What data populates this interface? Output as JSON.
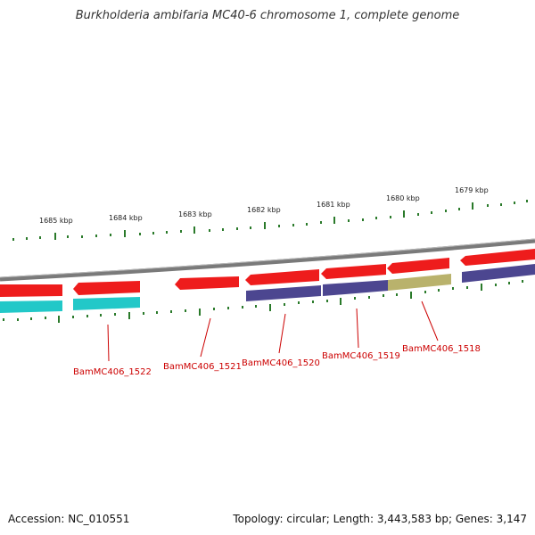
{
  "title": "Burkholderia ambifaria MC40-6 chromosome 1, complete genome",
  "footer": {
    "accession": "Accession: NC_010551",
    "summary": "Topology: circular; Length: 3,443,583 bp; Genes: 3,147"
  },
  "kbp_labels": [
    "1685 kbp",
    "1684 kbp",
    "1683 kbp",
    "1682 kbp",
    "1681 kbp",
    "1680 kbp",
    "1679 kbp"
  ],
  "gene_labels": [
    "BamMC406_1522",
    "BamMC406_1521",
    "BamMC406_1520",
    "BamMC406_1519",
    "BamMC406_1518"
  ],
  "colors": {
    "backbone": "#7a7a7a",
    "gene_red": "#ee1c1c",
    "gene_cyan": "#22c8c8",
    "gene_purple": "#4c4690",
    "gene_olive": "#b9b26c",
    "tick_green": "#2a7a2a",
    "label_red": "#cc0000"
  }
}
